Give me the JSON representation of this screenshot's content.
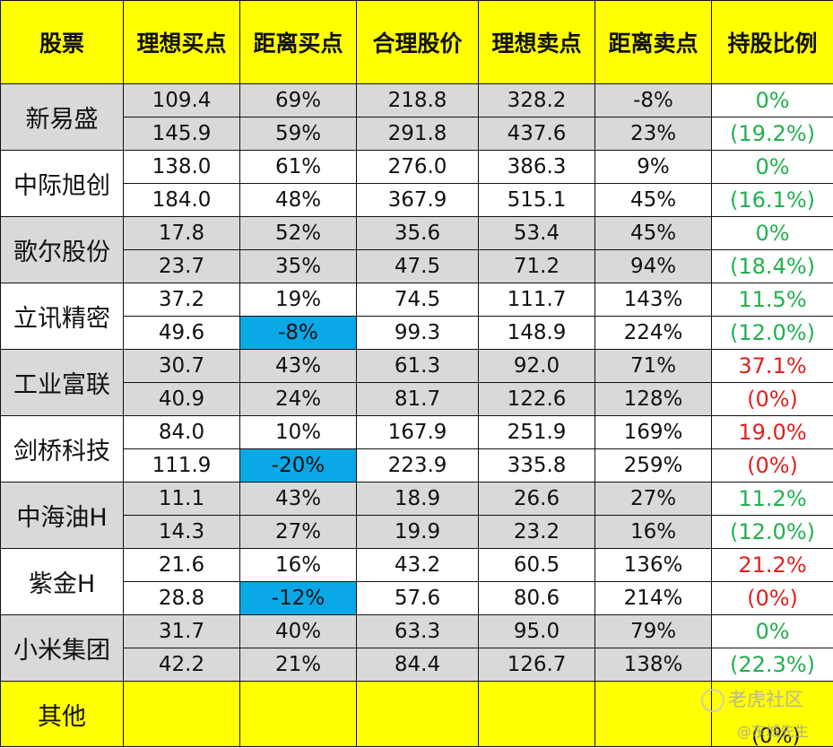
{
  "headers": [
    "股票",
    "理想买点",
    "距离买点",
    "合理股价",
    "理想卖点",
    "距离卖点",
    "持股比例"
  ],
  "rows": [
    {
      "name": "新易盛",
      "shade": true,
      "r1": [
        "109.4",
        "69%",
        "218.8",
        "328.2",
        "-8%"
      ],
      "r2": [
        "145.9",
        "59%",
        "291.8",
        "437.6",
        "23%"
      ],
      "p1": "0%",
      "p2": "(19.2%)",
      "pcolor": "green"
    },
    {
      "name": "中际旭创",
      "shade": false,
      "r1": [
        "138.0",
        "61%",
        "276.0",
        "386.3",
        "9%"
      ],
      "r2": [
        "184.0",
        "48%",
        "367.9",
        "515.1",
        "45%"
      ],
      "p1": "0%",
      "p2": "(16.1%)",
      "pcolor": "green"
    },
    {
      "name": "歌尔股份",
      "shade": true,
      "r1": [
        "17.8",
        "52%",
        "35.6",
        "53.4",
        "45%"
      ],
      "r2": [
        "23.7",
        "35%",
        "47.5",
        "71.2",
        "94%"
      ],
      "p1": "0%",
      "p2": "(18.4%)",
      "pcolor": "green"
    },
    {
      "name": "立讯精密",
      "shade": false,
      "r1": [
        "37.2",
        "19%",
        "74.5",
        "111.7",
        "143%"
      ],
      "r2": [
        "49.6",
        "-8%",
        "99.3",
        "148.9",
        "224%"
      ],
      "p1": "11.5%",
      "p2": "(12.0%)",
      "pcolor": "green",
      "hl2": true
    },
    {
      "name": "工业富联",
      "shade": true,
      "r1": [
        "30.7",
        "43%",
        "61.3",
        "92.0",
        "71%"
      ],
      "r2": [
        "40.9",
        "24%",
        "81.7",
        "122.6",
        "128%"
      ],
      "p1": "37.1%",
      "p2": "(0%)",
      "pcolor": "red"
    },
    {
      "name": "剑桥科技",
      "shade": false,
      "r1": [
        "84.0",
        "10%",
        "167.9",
        "251.9",
        "169%"
      ],
      "r2": [
        "111.9",
        "-20%",
        "223.9",
        "335.8",
        "259%"
      ],
      "p1": "19.0%",
      "p2": "(0%)",
      "pcolor": "red",
      "hl2": true
    },
    {
      "name": "中海油H",
      "shade": true,
      "r1": [
        "11.1",
        "43%",
        "18.9",
        "26.6",
        "27%"
      ],
      "r2": [
        "14.3",
        "27%",
        "19.9",
        "23.2",
        "16%"
      ],
      "p1": "11.2%",
      "p2": "(12.0%)",
      "pcolor": "green"
    },
    {
      "name": "紫金H",
      "shade": false,
      "r1": [
        "21.6",
        "16%",
        "43.2",
        "60.5",
        "136%"
      ],
      "r2": [
        "28.8",
        "-12%",
        "57.6",
        "80.6",
        "214%"
      ],
      "p1": "21.2%",
      "p2": "(0%)",
      "pcolor": "red",
      "hl2": true
    },
    {
      "name": "小米集团",
      "shade": true,
      "r1": [
        "31.7",
        "40%",
        "63.3",
        "95.0",
        "79%"
      ],
      "r2": [
        "42.2",
        "21%",
        "84.4",
        "126.7",
        "138%"
      ],
      "p1": "0%",
      "p2": "(22.3%)",
      "pcolor": "green"
    }
  ],
  "other": {
    "name": "其他",
    "pct": "(0%)"
  },
  "watermark": {
    "text": "老虎社区",
    "sub": "@东城先生"
  },
  "colors": {
    "header_bg": "#ffff00",
    "shade_bg": "#d9d9d9",
    "highlight_bg": "#0aa8e6",
    "green": "#22b04f",
    "red": "#e0201c"
  }
}
